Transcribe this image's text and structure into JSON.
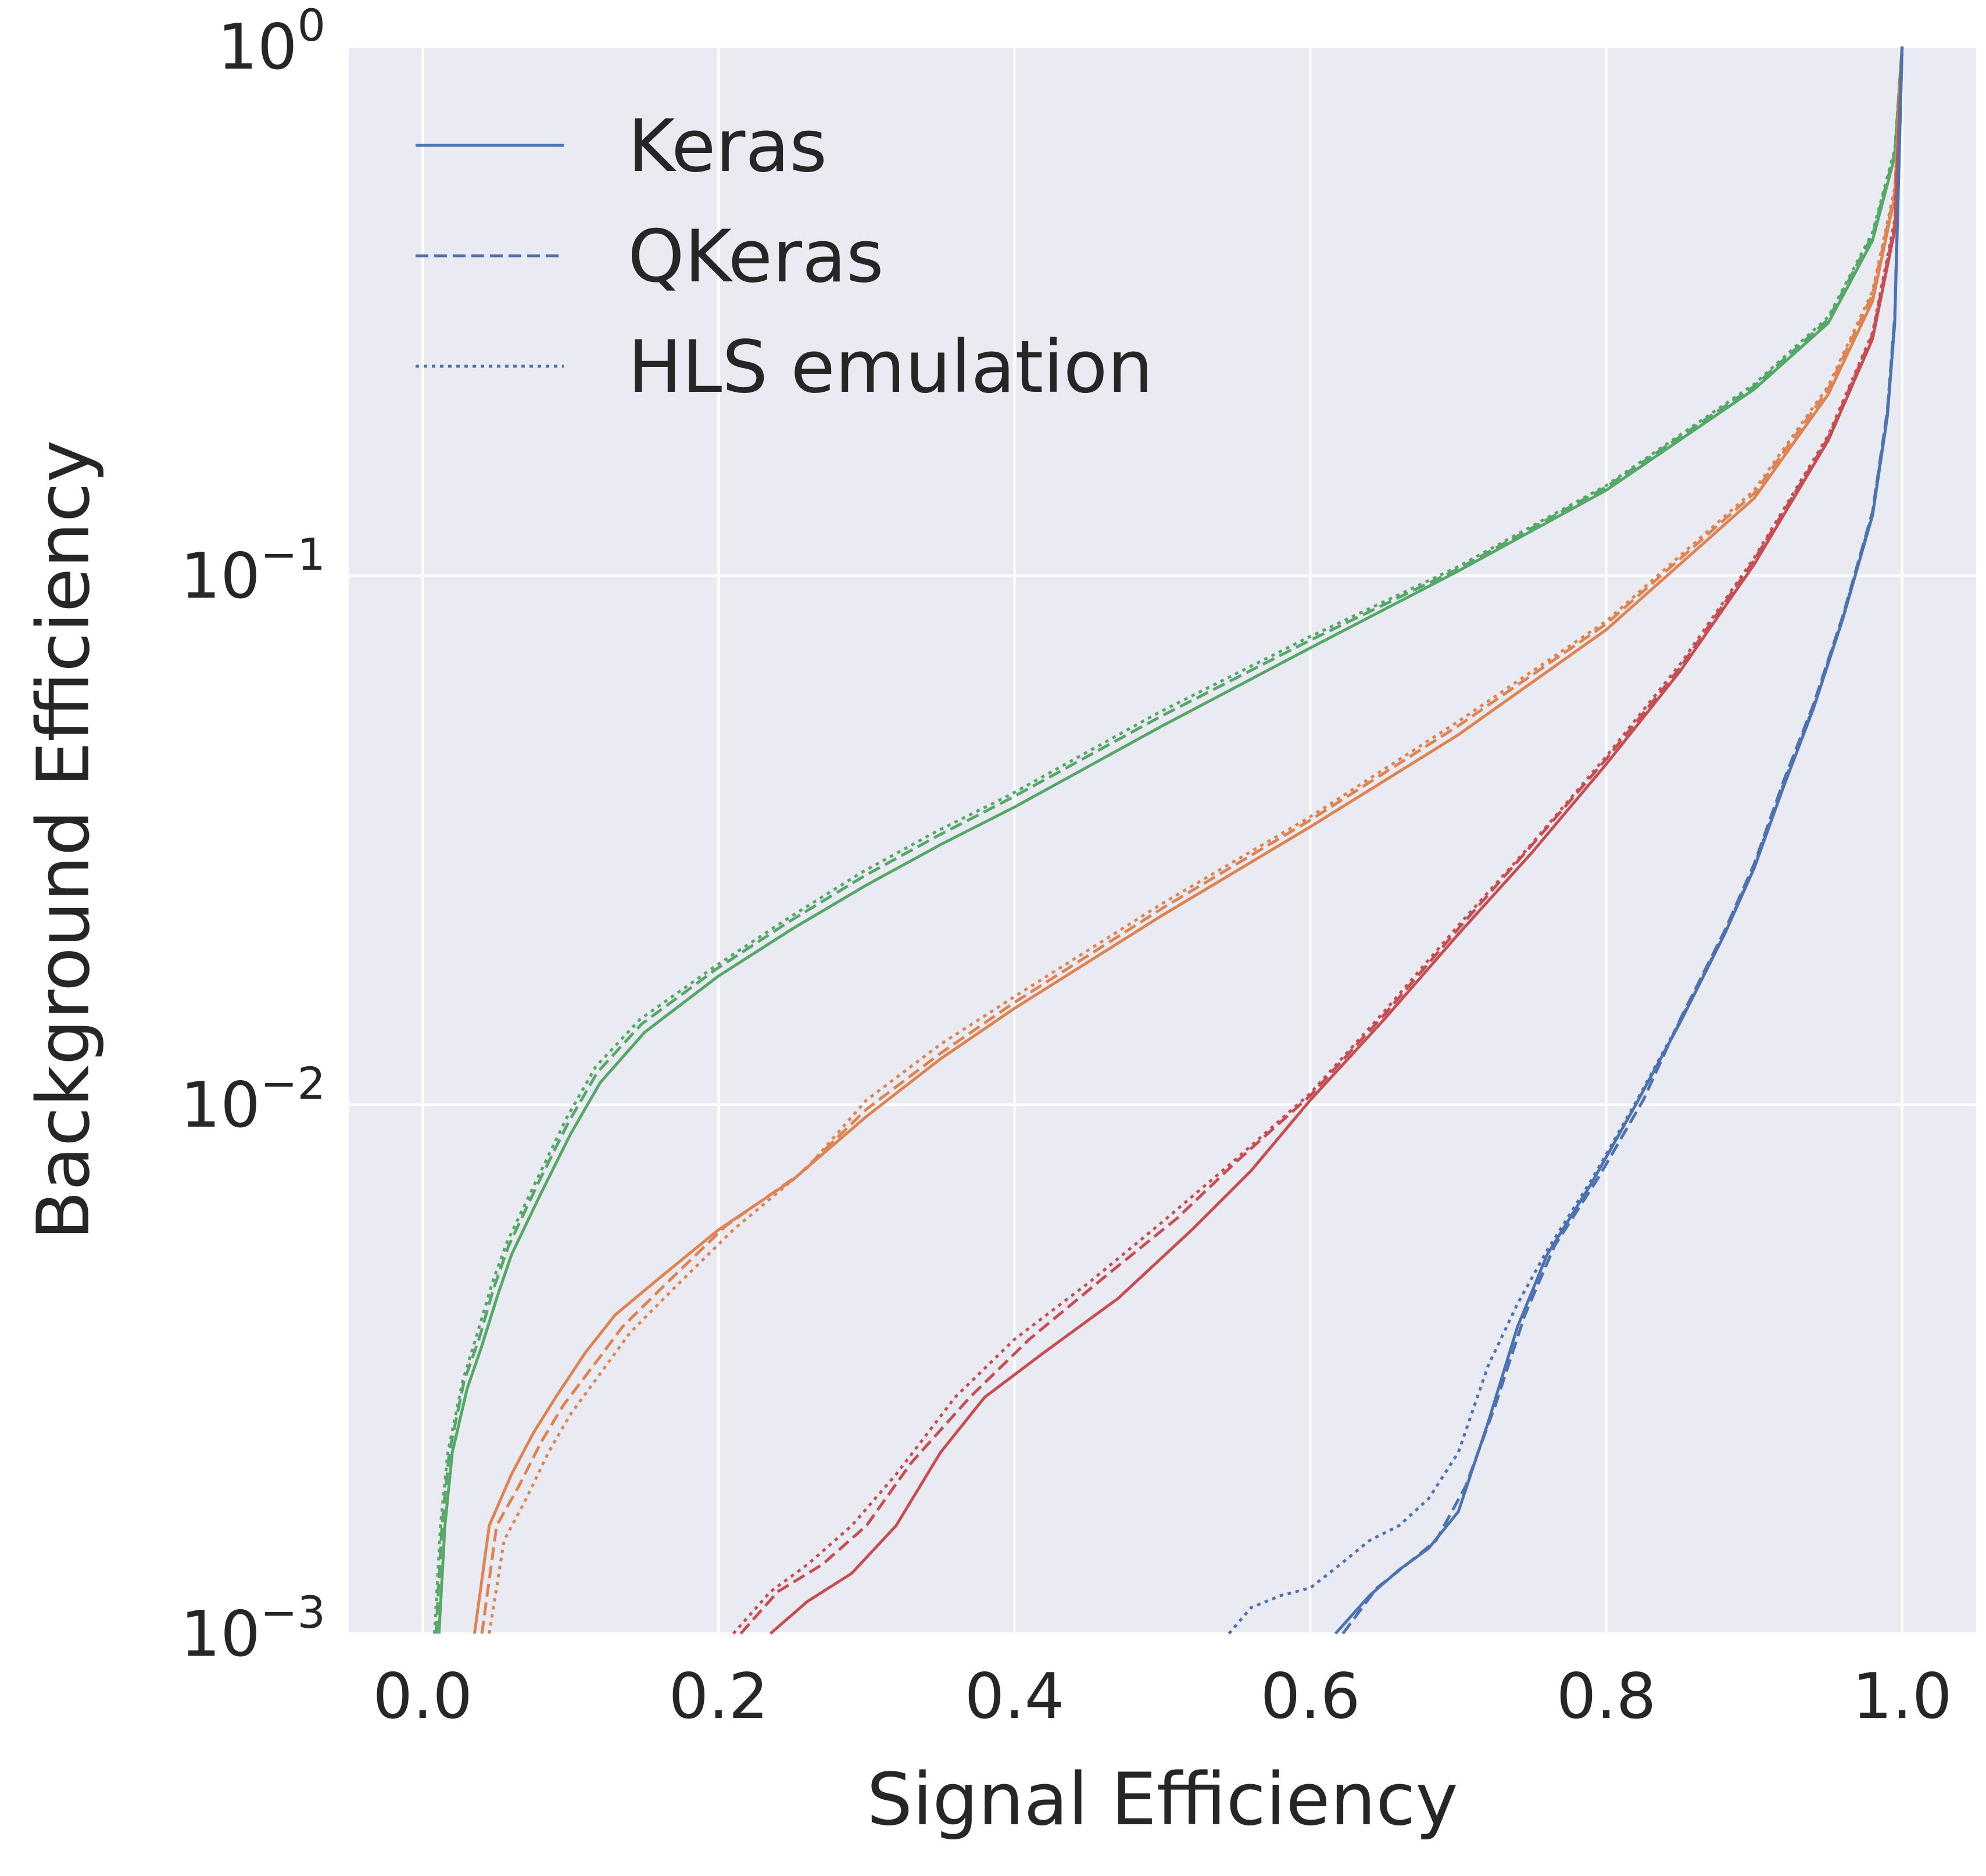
{
  "chart_data": {
    "type": "line",
    "xlabel": "Signal Efficiency",
    "ylabel": "Background Efficiency",
    "xlim": [
      -0.05,
      1.05
    ],
    "ylim": [
      0.001,
      1
    ],
    "yscale": "log",
    "grid": true,
    "legend_position": "top-left",
    "xticks": [
      "0.0",
      "0.2",
      "0.4",
      "0.6",
      "0.8",
      "1.0"
    ],
    "yticks": [
      {
        "base": "10",
        "exp": "0"
      },
      {
        "base": "10",
        "exp": "−1"
      },
      {
        "base": "10",
        "exp": "−2"
      },
      {
        "base": "10",
        "exp": "−3"
      }
    ],
    "legend": [
      {
        "label": "Keras",
        "dash": "solid"
      },
      {
        "label": "QKeras",
        "dash": "dashed"
      },
      {
        "label": "HLS emulation",
        "dash": "dotted"
      }
    ],
    "colors": {
      "blue": "#4c72b0",
      "orange": "#dd8452",
      "green": "#55a868",
      "red": "#c44e52",
      "plot_bg": "#eaeaf2",
      "text": "#262626"
    },
    "series": [
      {
        "color": "green",
        "style": "Keras",
        "points": [
          [
            0.011,
            0.001
          ],
          [
            0.015,
            0.0016
          ],
          [
            0.02,
            0.0022
          ],
          [
            0.03,
            0.0029
          ],
          [
            0.04,
            0.0035
          ],
          [
            0.05,
            0.0043
          ],
          [
            0.06,
            0.0052
          ],
          [
            0.08,
            0.0068
          ],
          [
            0.1,
            0.0088
          ],
          [
            0.12,
            0.011
          ],
          [
            0.15,
            0.0137
          ],
          [
            0.2,
            0.0175
          ],
          [
            0.25,
            0.0215
          ],
          [
            0.3,
            0.026
          ],
          [
            0.35,
            0.031
          ],
          [
            0.4,
            0.0365
          ],
          [
            0.5,
            0.052
          ],
          [
            0.6,
            0.073
          ],
          [
            0.7,
            0.102
          ],
          [
            0.8,
            0.145
          ],
          [
            0.9,
            0.225
          ],
          [
            0.95,
            0.3
          ],
          [
            0.98,
            0.43
          ],
          [
            0.995,
            0.62
          ],
          [
            1.0,
            1.0
          ]
        ]
      },
      {
        "color": "green",
        "style": "QKeras",
        "points": [
          [
            0.009,
            0.001
          ],
          [
            0.013,
            0.0016
          ],
          [
            0.018,
            0.0022
          ],
          [
            0.028,
            0.003
          ],
          [
            0.038,
            0.0036
          ],
          [
            0.048,
            0.0045
          ],
          [
            0.058,
            0.0054
          ],
          [
            0.078,
            0.0071
          ],
          [
            0.098,
            0.0092
          ],
          [
            0.118,
            0.0115
          ],
          [
            0.148,
            0.0142
          ],
          [
            0.198,
            0.018
          ],
          [
            0.248,
            0.0222
          ],
          [
            0.298,
            0.027
          ],
          [
            0.348,
            0.0322
          ],
          [
            0.398,
            0.038
          ],
          [
            0.498,
            0.054
          ],
          [
            0.598,
            0.075
          ],
          [
            0.7,
            0.103
          ],
          [
            0.8,
            0.147
          ],
          [
            0.9,
            0.228
          ],
          [
            0.95,
            0.305
          ],
          [
            0.98,
            0.44
          ],
          [
            0.995,
            0.63
          ],
          [
            1.0,
            1.0
          ]
        ]
      },
      {
        "color": "green",
        "style": "HLS emulation",
        "points": [
          [
            0.008,
            0.001
          ],
          [
            0.012,
            0.0016
          ],
          [
            0.017,
            0.0022
          ],
          [
            0.027,
            0.003
          ],
          [
            0.037,
            0.0037
          ],
          [
            0.047,
            0.0046
          ],
          [
            0.057,
            0.0055
          ],
          [
            0.077,
            0.0072
          ],
          [
            0.097,
            0.0094
          ],
          [
            0.117,
            0.0118
          ],
          [
            0.147,
            0.0145
          ],
          [
            0.197,
            0.0182
          ],
          [
            0.247,
            0.0225
          ],
          [
            0.297,
            0.0275
          ],
          [
            0.347,
            0.0328
          ],
          [
            0.397,
            0.0385
          ],
          [
            0.497,
            0.055
          ],
          [
            0.597,
            0.076
          ],
          [
            0.7,
            0.104
          ],
          [
            0.8,
            0.148
          ],
          [
            0.9,
            0.23
          ],
          [
            0.95,
            0.308
          ],
          [
            0.98,
            0.445
          ],
          [
            0.995,
            0.64
          ],
          [
            1.0,
            1.0
          ]
        ]
      },
      {
        "color": "orange",
        "style": "Keras",
        "points": [
          [
            0.035,
            0.001
          ],
          [
            0.045,
            0.0016
          ],
          [
            0.06,
            0.002
          ],
          [
            0.075,
            0.0024
          ],
          [
            0.09,
            0.0028
          ],
          [
            0.11,
            0.0034
          ],
          [
            0.13,
            0.004
          ],
          [
            0.16,
            0.0047
          ],
          [
            0.2,
            0.0058
          ],
          [
            0.25,
            0.0072
          ],
          [
            0.3,
            0.0095
          ],
          [
            0.35,
            0.0122
          ],
          [
            0.4,
            0.0152
          ],
          [
            0.5,
            0.0228
          ],
          [
            0.6,
            0.0335
          ],
          [
            0.7,
            0.05
          ],
          [
            0.8,
            0.079
          ],
          [
            0.9,
            0.14
          ],
          [
            0.95,
            0.22
          ],
          [
            0.98,
            0.33
          ],
          [
            0.995,
            0.52
          ],
          [
            1.0,
            1.0
          ]
        ]
      },
      {
        "color": "orange",
        "style": "QKeras",
        "points": [
          [
            0.04,
            0.001
          ],
          [
            0.05,
            0.0016
          ],
          [
            0.065,
            0.0019
          ],
          [
            0.08,
            0.0023
          ],
          [
            0.095,
            0.0027
          ],
          [
            0.115,
            0.0032
          ],
          [
            0.135,
            0.0038
          ],
          [
            0.165,
            0.0046
          ],
          [
            0.205,
            0.0059
          ],
          [
            0.255,
            0.0074
          ],
          [
            0.3,
            0.0098
          ],
          [
            0.35,
            0.0125
          ],
          [
            0.4,
            0.0156
          ],
          [
            0.5,
            0.0235
          ],
          [
            0.6,
            0.0345
          ],
          [
            0.7,
            0.052
          ],
          [
            0.8,
            0.081
          ],
          [
            0.9,
            0.143
          ],
          [
            0.95,
            0.225
          ],
          [
            0.98,
            0.34
          ],
          [
            0.995,
            0.53
          ],
          [
            1.0,
            1.0
          ]
        ]
      },
      {
        "color": "orange",
        "style": "HLS emulation",
        "points": [
          [
            0.045,
            0.001
          ],
          [
            0.055,
            0.0015
          ],
          [
            0.07,
            0.0018
          ],
          [
            0.085,
            0.0022
          ],
          [
            0.1,
            0.0026
          ],
          [
            0.12,
            0.0031
          ],
          [
            0.14,
            0.0037
          ],
          [
            0.17,
            0.0045
          ],
          [
            0.21,
            0.0058
          ],
          [
            0.26,
            0.0076
          ],
          [
            0.3,
            0.0102
          ],
          [
            0.35,
            0.013
          ],
          [
            0.4,
            0.016
          ],
          [
            0.5,
            0.024
          ],
          [
            0.6,
            0.035
          ],
          [
            0.7,
            0.053
          ],
          [
            0.8,
            0.082
          ],
          [
            0.9,
            0.145
          ],
          [
            0.95,
            0.228
          ],
          [
            0.98,
            0.345
          ],
          [
            0.995,
            0.54
          ],
          [
            1.0,
            1.0
          ]
        ]
      },
      {
        "color": "red",
        "style": "Keras",
        "points": [
          [
            0.235,
            0.001
          ],
          [
            0.26,
            0.00115
          ],
          [
            0.29,
            0.0013
          ],
          [
            0.32,
            0.0016
          ],
          [
            0.35,
            0.0022
          ],
          [
            0.38,
            0.0028
          ],
          [
            0.42,
            0.0034
          ],
          [
            0.47,
            0.0043
          ],
          [
            0.52,
            0.0058
          ],
          [
            0.56,
            0.0075
          ],
          [
            0.6,
            0.0102
          ],
          [
            0.65,
            0.0145
          ],
          [
            0.7,
            0.021
          ],
          [
            0.75,
            0.03
          ],
          [
            0.8,
            0.044
          ],
          [
            0.85,
            0.066
          ],
          [
            0.9,
            0.105
          ],
          [
            0.95,
            0.18
          ],
          [
            0.98,
            0.28
          ],
          [
            0.995,
            0.45
          ],
          [
            1.0,
            1.0
          ]
        ]
      },
      {
        "color": "red",
        "style": "QKeras",
        "points": [
          [
            0.215,
            0.001
          ],
          [
            0.24,
            0.0012
          ],
          [
            0.27,
            0.00135
          ],
          [
            0.3,
            0.0016
          ],
          [
            0.33,
            0.0021
          ],
          [
            0.37,
            0.0028
          ],
          [
            0.41,
            0.0036
          ],
          [
            0.46,
            0.0047
          ],
          [
            0.51,
            0.0061
          ],
          [
            0.55,
            0.0078
          ],
          [
            0.6,
            0.0104
          ],
          [
            0.65,
            0.0148
          ],
          [
            0.7,
            0.0215
          ],
          [
            0.75,
            0.031
          ],
          [
            0.8,
            0.045
          ],
          [
            0.85,
            0.067
          ],
          [
            0.9,
            0.107
          ],
          [
            0.95,
            0.182
          ],
          [
            0.98,
            0.285
          ],
          [
            0.995,
            0.46
          ],
          [
            1.0,
            1.0
          ]
        ]
      },
      {
        "color": "red",
        "style": "HLS emulation",
        "points": [
          [
            0.21,
            0.001
          ],
          [
            0.235,
            0.0012
          ],
          [
            0.26,
            0.00135
          ],
          [
            0.29,
            0.0016
          ],
          [
            0.32,
            0.002
          ],
          [
            0.36,
            0.0028
          ],
          [
            0.4,
            0.0036
          ],
          [
            0.45,
            0.0046
          ],
          [
            0.5,
            0.006
          ],
          [
            0.55,
            0.0079
          ],
          [
            0.6,
            0.0105
          ],
          [
            0.65,
            0.015
          ],
          [
            0.7,
            0.0218
          ],
          [
            0.75,
            0.0312
          ],
          [
            0.8,
            0.0455
          ],
          [
            0.85,
            0.068
          ],
          [
            0.9,
            0.108
          ],
          [
            0.95,
            0.184
          ],
          [
            0.98,
            0.288
          ],
          [
            0.995,
            0.47
          ],
          [
            1.0,
            1.0
          ]
        ]
      },
      {
        "color": "blue",
        "style": "Keras",
        "points": [
          [
            0.617,
            0.001
          ],
          [
            0.64,
            0.00118
          ],
          [
            0.66,
            0.00132
          ],
          [
            0.68,
            0.00145
          ],
          [
            0.7,
            0.0017
          ],
          [
            0.72,
            0.0025
          ],
          [
            0.74,
            0.0038
          ],
          [
            0.76,
            0.0052
          ],
          [
            0.79,
            0.0071
          ],
          [
            0.82,
            0.01
          ],
          [
            0.85,
            0.0143
          ],
          [
            0.88,
            0.021
          ],
          [
            0.9,
            0.028
          ],
          [
            0.92,
            0.04
          ],
          [
            0.94,
            0.056
          ],
          [
            0.96,
            0.083
          ],
          [
            0.98,
            0.13
          ],
          [
            0.99,
            0.2
          ],
          [
            0.995,
            0.3
          ],
          [
            1.0,
            1.0
          ]
        ]
      },
      {
        "color": "blue",
        "style": "QKeras",
        "points": [
          [
            0.622,
            0.001
          ],
          [
            0.645,
            0.00122
          ],
          [
            0.665,
            0.00135
          ],
          [
            0.685,
            0.0015
          ],
          [
            0.705,
            0.0019
          ],
          [
            0.725,
            0.0027
          ],
          [
            0.745,
            0.004
          ],
          [
            0.765,
            0.0054
          ],
          [
            0.795,
            0.0073
          ],
          [
            0.825,
            0.0102
          ],
          [
            0.85,
            0.0145
          ],
          [
            0.88,
            0.0213
          ],
          [
            0.9,
            0.0285
          ],
          [
            0.92,
            0.041
          ],
          [
            0.94,
            0.057
          ],
          [
            0.96,
            0.084
          ],
          [
            0.98,
            0.132
          ],
          [
            0.99,
            0.205
          ],
          [
            0.995,
            0.31
          ],
          [
            1.0,
            1.0
          ]
        ]
      },
      {
        "color": "blue",
        "style": "HLS emulation",
        "points": [
          [
            0.545,
            0.001
          ],
          [
            0.56,
            0.00112
          ],
          [
            0.58,
            0.00118
          ],
          [
            0.6,
            0.00122
          ],
          [
            0.62,
            0.00135
          ],
          [
            0.64,
            0.0015
          ],
          [
            0.66,
            0.0016
          ],
          [
            0.68,
            0.0018
          ],
          [
            0.7,
            0.0022
          ],
          [
            0.72,
            0.0032
          ],
          [
            0.74,
            0.0042
          ],
          [
            0.76,
            0.0053
          ],
          [
            0.79,
            0.0072
          ],
          [
            0.82,
            0.0101
          ],
          [
            0.85,
            0.0144
          ],
          [
            0.88,
            0.0211
          ],
          [
            0.9,
            0.0282
          ],
          [
            0.92,
            0.0405
          ],
          [
            0.94,
            0.0565
          ],
          [
            0.96,
            0.0835
          ],
          [
            0.98,
            0.131
          ],
          [
            0.99,
            0.203
          ],
          [
            0.995,
            0.305
          ],
          [
            1.0,
            1.0
          ]
        ]
      }
    ]
  }
}
